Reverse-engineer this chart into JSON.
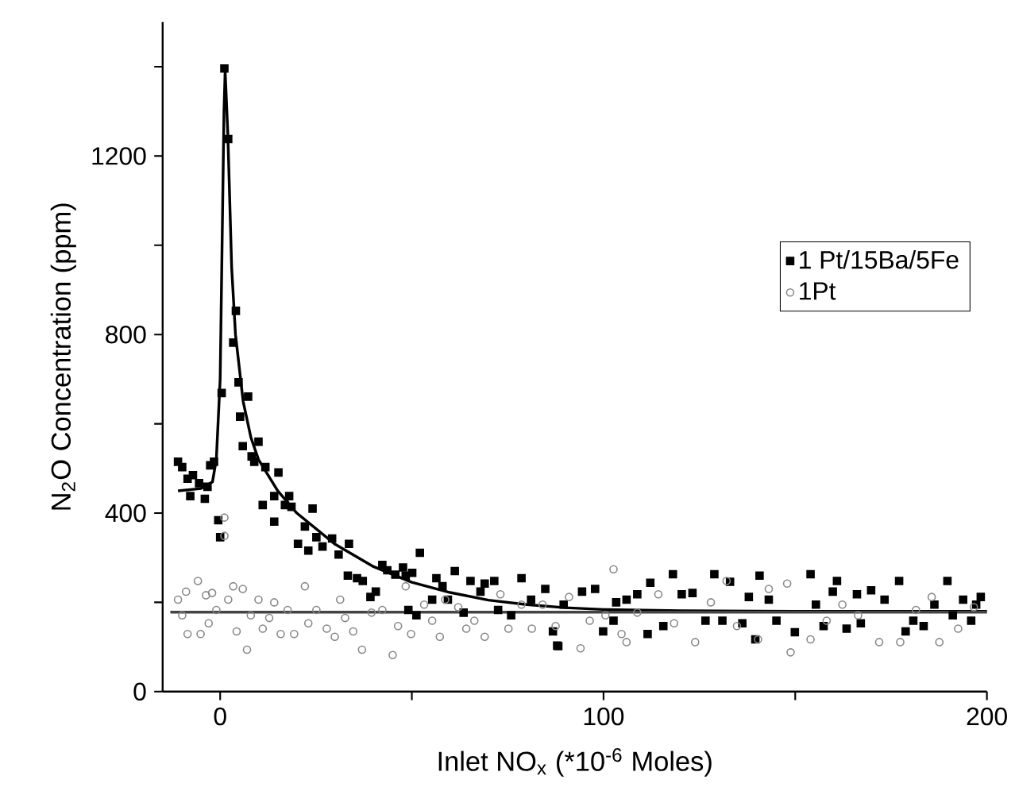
{
  "chart_data": {
    "type": "scatter",
    "xlabel": "Inlet NO$_{x}$ (*10$^{-6}$ Moles)",
    "ylabel": "N$_{2}$O Concentration (ppm)",
    "xlim": [
      -15,
      200
    ],
    "ylim": [
      0,
      1500
    ],
    "xticks": [
      0,
      {
        "value": 50,
        "label": null
      },
      100,
      {
        "value": 150,
        "label": null
      },
      200
    ],
    "yticks": [
      0,
      {
        "value": 200,
        "label": null
      },
      400,
      {
        "value": 600,
        "label": null
      },
      800,
      {
        "value": 1000,
        "label": null
      },
      1200,
      {
        "value": 1400,
        "label": null
      }
    ],
    "legend": "right",
    "grid": false,
    "series": [
      {
        "name": "1 Pt/15Ba/5Fe",
        "marker": "square",
        "color": "#000000",
        "x": [
          -11,
          -9.9,
          -8.5,
          -7.1,
          -7.8,
          -5.5,
          -4,
          -3.3,
          -2.6,
          -1.6,
          -0.5,
          0,
          0.4,
          1.1,
          2.1,
          3.4,
          4.1,
          4.8,
          5.2,
          5.9,
          7.3,
          8.2,
          8.9,
          10,
          11.8,
          11.1,
          14.1,
          14.1,
          15.2,
          16.9,
          18,
          18.6,
          20.3,
          22.1,
          23,
          24.1,
          25.1,
          26.7,
          29.2,
          30.9,
          33.6,
          33.3,
          35.7,
          37.2,
          39.2,
          40.6,
          42.3,
          43.6,
          45.7,
          47.7,
          48.4,
          49.1,
          50.1,
          52.1,
          51.2,
          55.3,
          56.4,
          58,
          59.4,
          61.2,
          63.5,
          65.3,
          67.9,
          69,
          71.5,
          72.5,
          75.9,
          78.6,
          81.1,
          84.8,
          86.8,
          87.9,
          88.2,
          89.6,
          94.4,
          97.8,
          99.9,
          102.6,
          103.3,
          106,
          108.8,
          112.2,
          111.5,
          115.6,
          118.1,
          120.4,
          123.2,
          126.6,
          128.9,
          131,
          133,
          136.2,
          137.9,
          139.6,
          140.7,
          143.1,
          145.1,
          149.9,
          154,
          155.4,
          157.4,
          159.8,
          160.9,
          163.4,
          166.1,
          167.1,
          169.8,
          173.3,
          177.1,
          178.8,
          180.8,
          183.5,
          186.3,
          189.7,
          191.1,
          193.8,
          195.9,
          197.2,
          198.4
        ],
        "values": [
          515,
          503,
          477,
          485,
          438,
          467,
          432,
          459,
          507,
          515,
          384,
          346,
          669,
          1396,
          1238,
          782,
          853,
          693,
          616,
          550,
          661,
          527,
          515,
          560,
          503,
          418,
          438,
          381,
          491,
          418,
          438,
          414,
          331,
          370,
          316,
          410,
          346,
          325,
          343,
          307,
          331,
          260,
          254,
          248,
          212,
          224,
          284,
          272,
          262,
          278,
          260,
          183,
          266,
          311,
          171,
          206,
          254,
          236,
          206,
          270,
          177,
          248,
          224,
          242,
          248,
          183,
          171,
          254,
          206,
          230,
          135,
          103,
          102,
          195,
          224,
          230,
          135,
          159,
          200,
          206,
          218,
          244,
          129,
          147,
          263,
          218,
          221,
          159,
          263,
          159,
          246,
          153,
          212,
          117,
          260,
          206,
          159,
          133,
          263,
          195,
          147,
          224,
          248,
          141,
          218,
          153,
          227,
          206,
          248,
          135,
          159,
          147,
          195,
          248,
          171,
          206,
          159,
          195,
          212
        ]
      },
      {
        "name": "1Pt",
        "marker": "circle",
        "color": "#888888",
        "x": [
          -11,
          -8.9,
          -5.8,
          -3.7,
          -2.1,
          -9.9,
          -8.5,
          -5.1,
          -3,
          -1,
          1.1,
          1.1,
          2.1,
          3.4,
          4.3,
          5.9,
          7,
          8,
          10,
          11.1,
          12.8,
          14.1,
          15.8,
          17.6,
          19.3,
          22.1,
          23,
          25.1,
          27.8,
          29.9,
          31.3,
          32.6,
          34.7,
          37,
          39.5,
          42.3,
          45,
          46.4,
          48.4,
          49.8,
          53.2,
          55.3,
          57.3,
          58.7,
          62.1,
          64.2,
          66.3,
          69,
          73.1,
          75.2,
          78.6,
          81.3,
          84.1,
          87.5,
          94,
          91,
          96.4,
          100.5,
          102.6,
          104.7,
          106,
          108.8,
          114.3,
          118.4,
          123.9,
          128,
          132.1,
          134.8,
          140.3,
          143.1,
          147.9,
          148.8,
          154,
          158.2,
          162.3,
          166.4,
          171.9,
          177.4,
          181.5,
          187.6,
          185.6,
          192.5,
          196.6
        ],
        "values": [
          206,
          224,
          248,
          216,
          221,
          171,
          129,
          129,
          153,
          183,
          390,
          349,
          206,
          236,
          135,
          230,
          94,
          171,
          206,
          141,
          165,
          200,
          129,
          183,
          129,
          236,
          153,
          183,
          141,
          123,
          206,
          165,
          135,
          94,
          177,
          183,
          82,
          147,
          236,
          129,
          195,
          159,
          123,
          206,
          189,
          141,
          159,
          123,
          218,
          141,
          195,
          141,
          195,
          147,
          97,
          212,
          159,
          171,
          274,
          129,
          111,
          177,
          218,
          153,
          111,
          200,
          248,
          147,
          117,
          230,
          242,
          88,
          117,
          159,
          195,
          171,
          111,
          111,
          183,
          111,
          212,
          141,
          189
        ]
      },
      {
        "type": "line",
        "color": "#000000",
        "x": [
          -11,
          -5,
          -2,
          -1,
          0,
          0.5,
          1,
          1.3,
          2,
          3,
          4,
          6,
          8,
          10,
          15,
          20,
          30,
          40,
          50,
          60,
          70,
          80,
          90,
          100,
          120,
          150,
          200
        ],
        "values": [
          450,
          455,
          470,
          520,
          700,
          1000,
          1300,
          1390,
          1250,
          950,
          800,
          650,
          570,
          520,
          450,
          400,
          330,
          280,
          245,
          222,
          205,
          195,
          188,
          184,
          181,
          180,
          180
        ]
      },
      {
        "type": "line",
        "color": "#444444",
        "x": [
          -13,
          200
        ],
        "values": [
          178,
          178
        ]
      }
    ]
  }
}
